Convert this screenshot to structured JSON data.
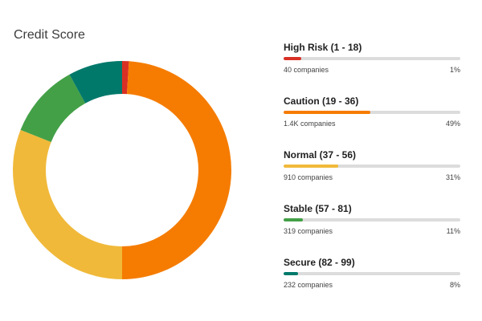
{
  "title": "Credit Score",
  "chart_data": {
    "type": "pie",
    "title": "Credit Score",
    "categories": [
      "High Risk (1 - 18)",
      "Caution (19 - 36)",
      "Normal (37 - 56)",
      "Stable (57 - 81)",
      "Secure (82 - 99)"
    ],
    "values": [
      1,
      49,
      31,
      11,
      8
    ],
    "unit": "%",
    "counts": [
      "40 companies",
      "1.4K companies",
      "910 companies",
      "319 companies",
      "232 companies"
    ],
    "percent_labels": [
      "1%",
      "49%",
      "31%",
      "11%",
      "8%"
    ],
    "colors": [
      "#d93025",
      "#f57c00",
      "#f0b93a",
      "#43a047",
      "#00796b"
    ],
    "legend": "right"
  }
}
